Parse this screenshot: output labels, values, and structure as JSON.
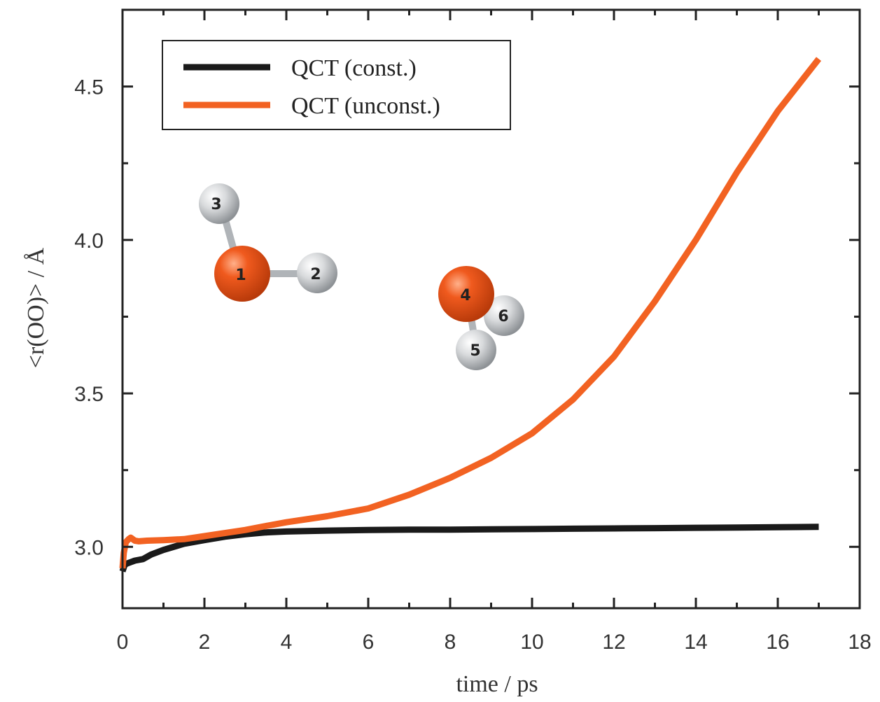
{
  "chart_data": {
    "type": "line",
    "title": "",
    "xlabel": "time / ps",
    "ylabel": "<r(OO)> / Å",
    "xlim": [
      0,
      18
    ],
    "ylim": [
      2.8,
      4.75
    ],
    "x_ticks": [
      "0",
      "2",
      "4",
      "6",
      "8",
      "10",
      "12",
      "14",
      "16",
      "18"
    ],
    "y_ticks": [
      "3.0",
      "3.5",
      "4.0",
      "4.5"
    ],
    "legend_position": "top-left",
    "grid": false,
    "series": [
      {
        "name": "QCT (const.)",
        "color": "#1a1a1a",
        "x": [
          0,
          0.05,
          0.1,
          0.2,
          0.3,
          0.5,
          0.7,
          1,
          1.5,
          2,
          2.5,
          3,
          3.5,
          4,
          5,
          6,
          7,
          8,
          9,
          10,
          11,
          12,
          13,
          14,
          15,
          16,
          17
        ],
        "y": [
          2.92,
          2.94,
          2.945,
          2.95,
          2.955,
          2.96,
          2.975,
          2.99,
          3.01,
          3.022,
          3.033,
          3.041,
          3.047,
          3.05,
          3.053,
          3.055,
          3.056,
          3.056,
          3.057,
          3.058,
          3.059,
          3.06,
          3.061,
          3.062,
          3.063,
          3.064,
          3.065
        ]
      },
      {
        "name": "QCT (unconst.)",
        "color": "#f26222",
        "x": [
          0,
          0.03,
          0.08,
          0.15,
          0.2,
          0.25,
          0.3,
          0.4,
          0.6,
          1,
          1.5,
          2,
          2.5,
          3,
          3.5,
          4,
          5,
          6,
          7,
          8,
          9,
          10,
          11,
          12,
          13,
          14,
          15,
          16,
          17
        ],
        "y": [
          2.93,
          2.98,
          3.015,
          3.025,
          3.03,
          3.025,
          3.02,
          3.018,
          3.02,
          3.022,
          3.025,
          3.035,
          3.045,
          3.055,
          3.068,
          3.08,
          3.1,
          3.125,
          3.17,
          3.225,
          3.29,
          3.37,
          3.48,
          3.62,
          3.8,
          4.0,
          4.22,
          4.42,
          4.59
        ]
      }
    ],
    "annotations": [
      {
        "label": "1",
        "element": "O"
      },
      {
        "label": "2",
        "element": "H"
      },
      {
        "label": "3",
        "element": "H"
      },
      {
        "label": "4",
        "element": "O"
      },
      {
        "label": "5",
        "element": "H"
      },
      {
        "label": "6",
        "element": "H"
      }
    ],
    "colors": {
      "oxygen": "#e2531a",
      "hydrogen": "#d6d8da",
      "bond": "#b8bcc0",
      "axis": "#222222"
    }
  }
}
